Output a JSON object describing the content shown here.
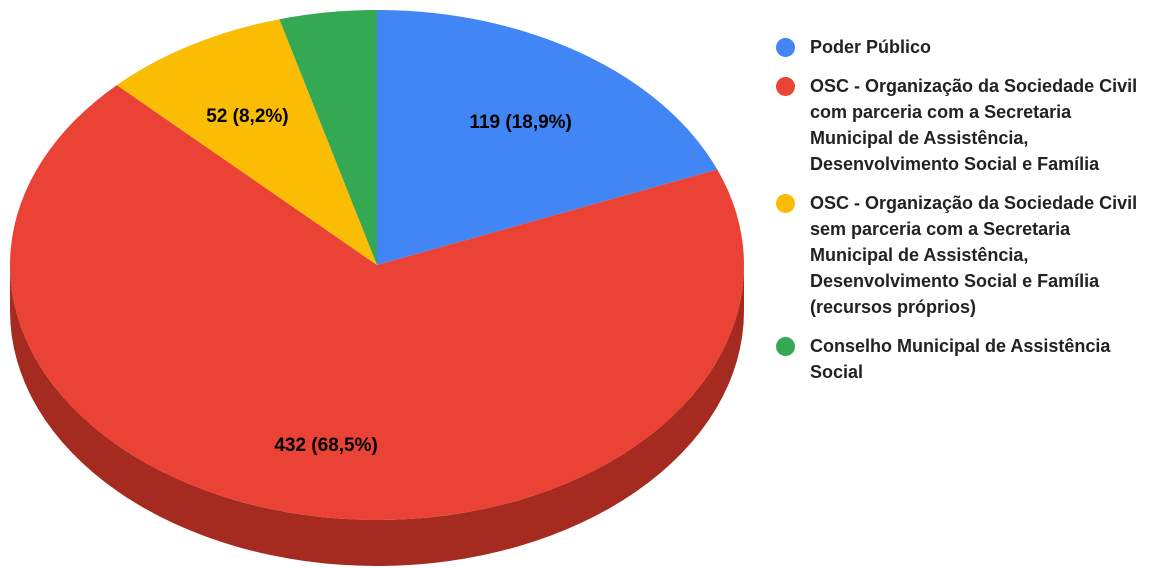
{
  "chart_data": {
    "type": "pie",
    "categories": [
      "Poder Público",
      "OSC - Organização da Sociedade Civil com parceria com a Secretaria Municipal de Assistência, Desenvolvimento Social e Família",
      "OSC - Organização da Sociedade Civil sem parceria com a Secretaria Municipal de Assistência, Desenvolvimento Social e Família (recursos próprios)",
      "Conselho Municipal de Assistência Social"
    ],
    "values": [
      119,
      432,
      52,
      27
    ],
    "value_labels": [
      "119 (18,9%)",
      "432 (68,5%)",
      "52 (8,2%)",
      null
    ],
    "colors": [
      "#4285f4",
      "#ea4335",
      "#fbbc04",
      "#34a853"
    ],
    "side_colors": [
      "#2a5db0",
      "#a52a1f",
      "#b58800",
      "#227538"
    ],
    "three_d": true,
    "legend": "right"
  }
}
